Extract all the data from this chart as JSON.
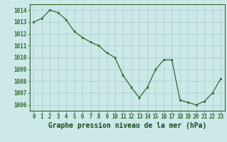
{
  "x": [
    0,
    1,
    2,
    3,
    4,
    5,
    6,
    7,
    8,
    9,
    10,
    11,
    12,
    13,
    14,
    15,
    16,
    17,
    18,
    19,
    20,
    21,
    22,
    23
  ],
  "y": [
    1013.0,
    1013.3,
    1014.0,
    1013.8,
    1013.2,
    1012.2,
    1011.7,
    1011.3,
    1011.0,
    1010.4,
    1010.0,
    1008.5,
    1007.5,
    1006.6,
    1007.5,
    1009.0,
    1009.8,
    1009.8,
    1006.4,
    1006.2,
    1006.0,
    1006.3,
    1007.0,
    1008.2
  ],
  "ylim": [
    1005.5,
    1014.5
  ],
  "yticks": [
    1006,
    1007,
    1008,
    1009,
    1010,
    1011,
    1012,
    1013,
    1014
  ],
  "xticks": [
    0,
    1,
    2,
    3,
    4,
    5,
    6,
    7,
    8,
    9,
    10,
    11,
    12,
    13,
    14,
    15,
    16,
    17,
    18,
    19,
    20,
    21,
    22,
    23
  ],
  "xlabel": "Graphe pression niveau de la mer (hPa)",
  "line_color": "#2d6a2d",
  "marker_color": "#2d6a2d",
  "bg_color": "#cce8e8",
  "grid_color": "#aacccc",
  "axis_color": "#2d6a2d",
  "tick_label_color": "#2d6a2d",
  "xlabel_color": "#1a4a1a",
  "xlabel_fontsize": 7.0,
  "tick_fontsize": 5.5
}
